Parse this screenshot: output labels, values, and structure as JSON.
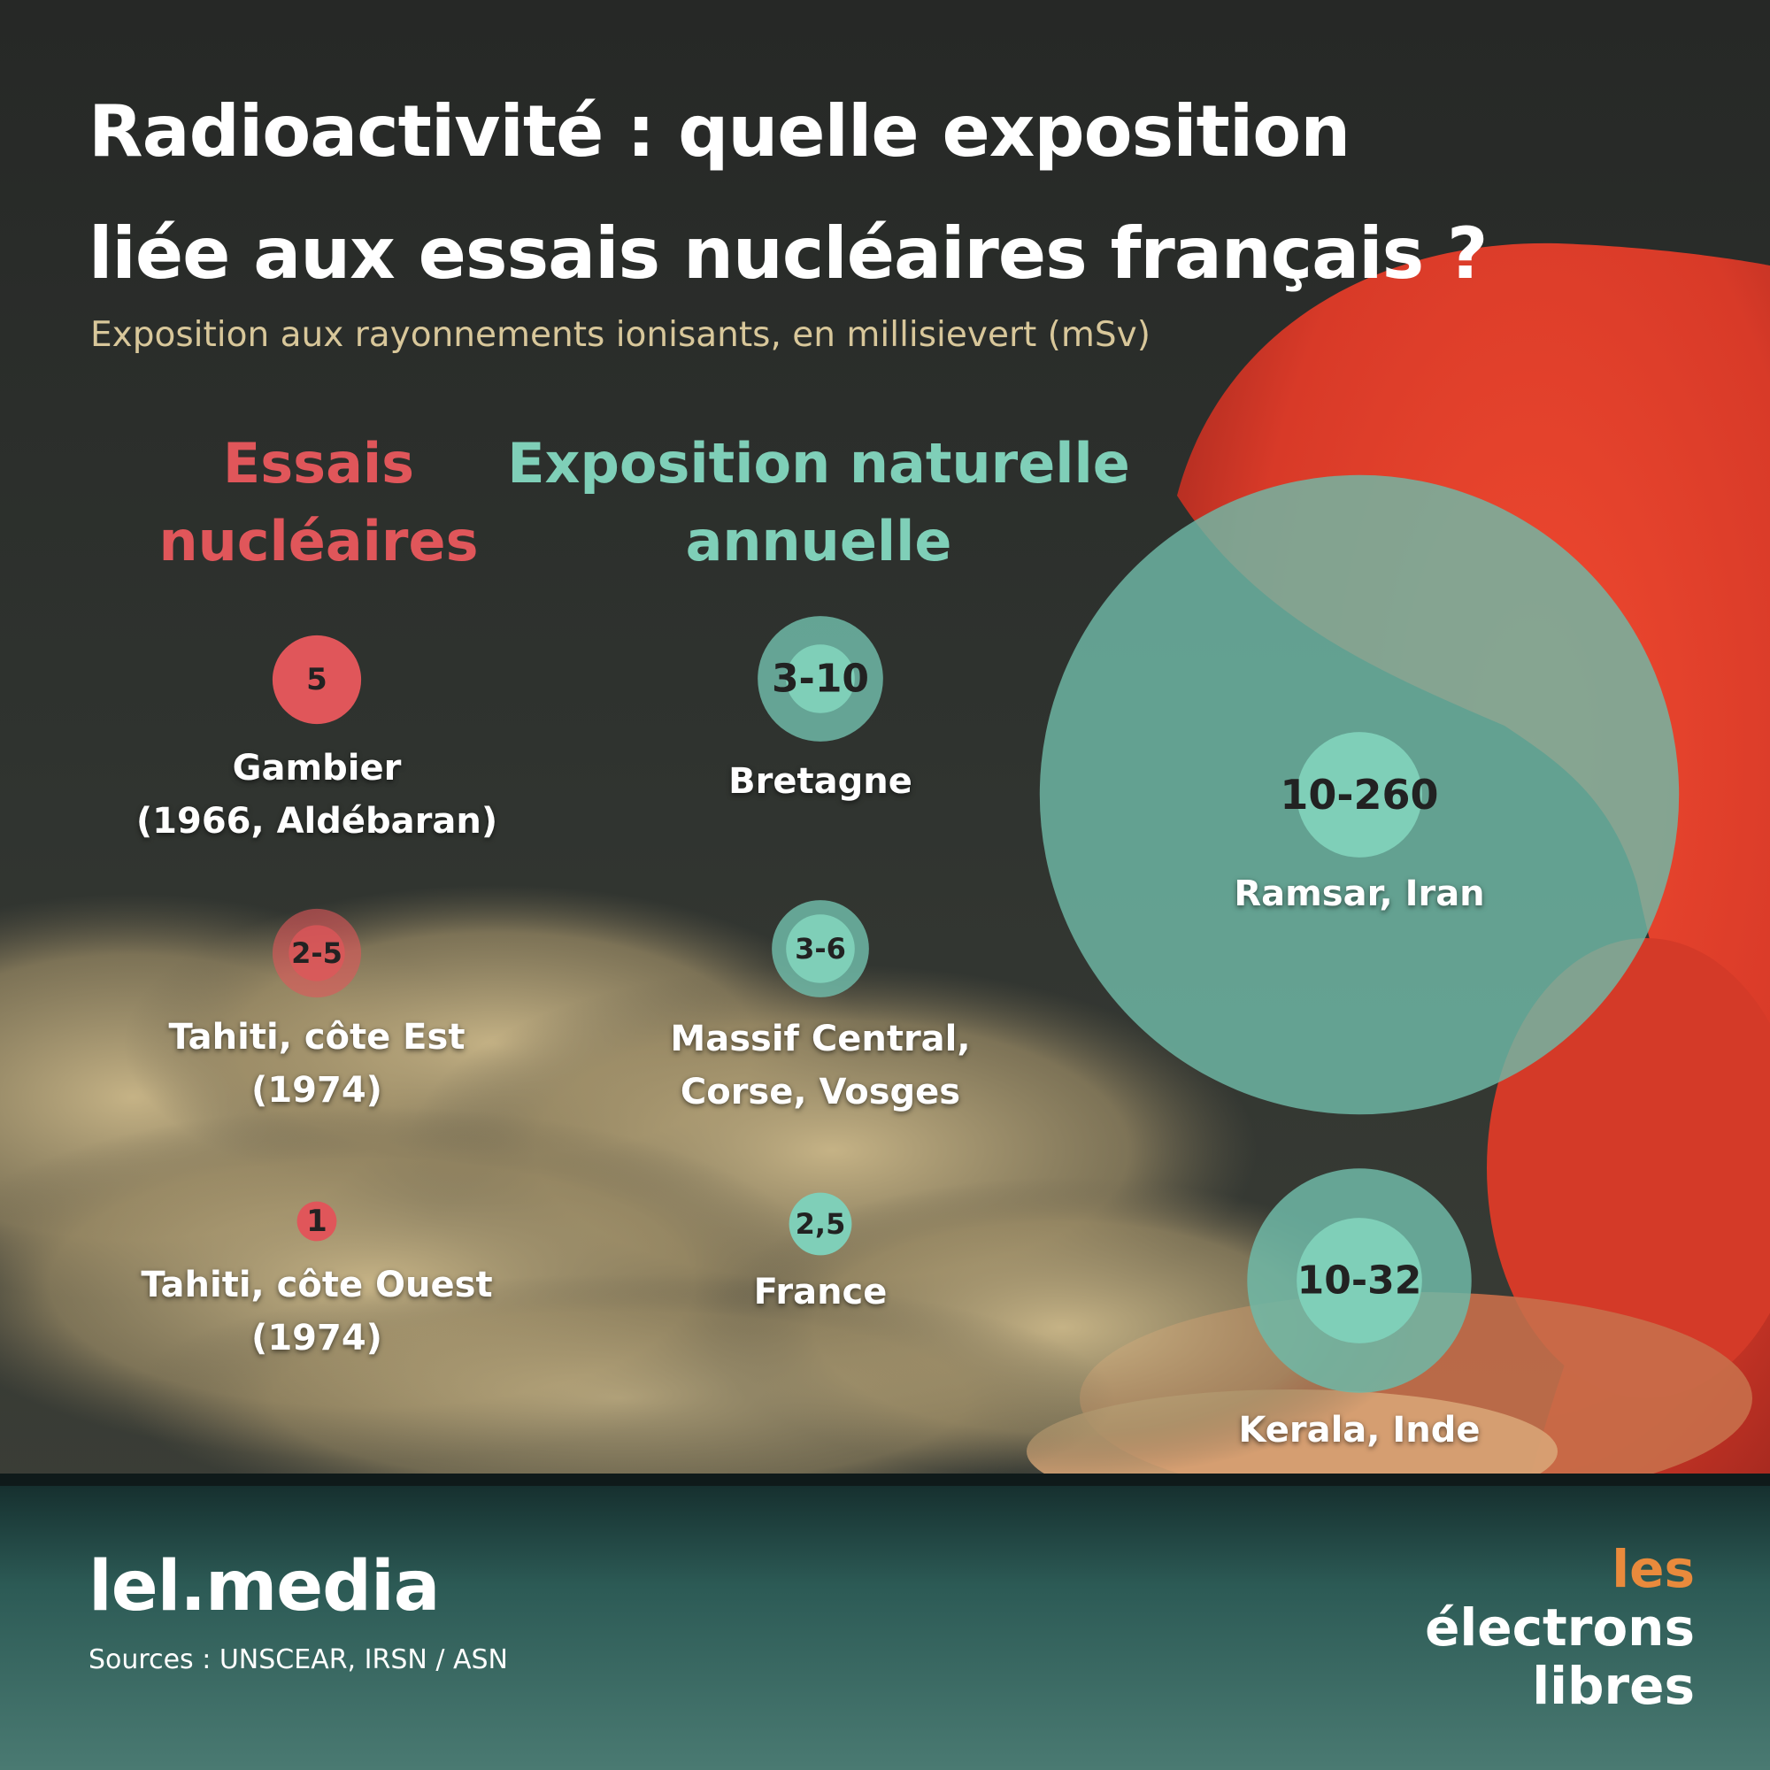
{
  "title": "Radioactivité : quelle exposition liée aux essais nucléaires français ?",
  "subtitle": "Exposition aux rayonnements ionisants, en millisievert (mSv)",
  "brand": "lel.media",
  "sources": "Sources : UNSCEAR, IRSN / ASN",
  "logo": {
    "line1_part1": "les ",
    "line1_part2": "électrons",
    "line2": "libres"
  },
  "colors": {
    "nuclear_red": "#e0565a",
    "teal_inner": "#7fcfb8",
    "teal_outer": "#6fb9a7",
    "subtitle_beige": "#d8c79a",
    "logo_orange": "#e98a3c"
  },
  "chart_data": {
    "type": "bubble",
    "unit": "mSv",
    "groups": [
      {
        "name": "Essais nucléaires",
        "color": "#e0565a",
        "items": [
          {
            "label": "5",
            "value": 5,
            "place": "Gambier\n(1966, Aldébaran)"
          },
          {
            "label": "2-5",
            "min": 2,
            "max": 5,
            "place": "Tahiti, côte Est\n(1974)"
          },
          {
            "label": "1",
            "value": 1,
            "place": "Tahiti, côte Ouest\n(1974)"
          }
        ]
      },
      {
        "name": "Exposition naturelle annuelle",
        "color": "#7fcfb8",
        "items": [
          {
            "label": "3-10",
            "min": 3,
            "max": 10,
            "place": "Bretagne"
          },
          {
            "label": "3-6",
            "min": 3,
            "max": 6,
            "place": "Massif Central,\nCorse, Vosges"
          },
          {
            "label": "2,5",
            "value": 2.5,
            "place": "France"
          },
          {
            "label": "10-260",
            "min": 10,
            "max": 260,
            "place": "Ramsar, Iran"
          },
          {
            "label": "10-32",
            "min": 10,
            "max": 32,
            "place": "Kerala, Inde"
          }
        ]
      }
    ]
  }
}
